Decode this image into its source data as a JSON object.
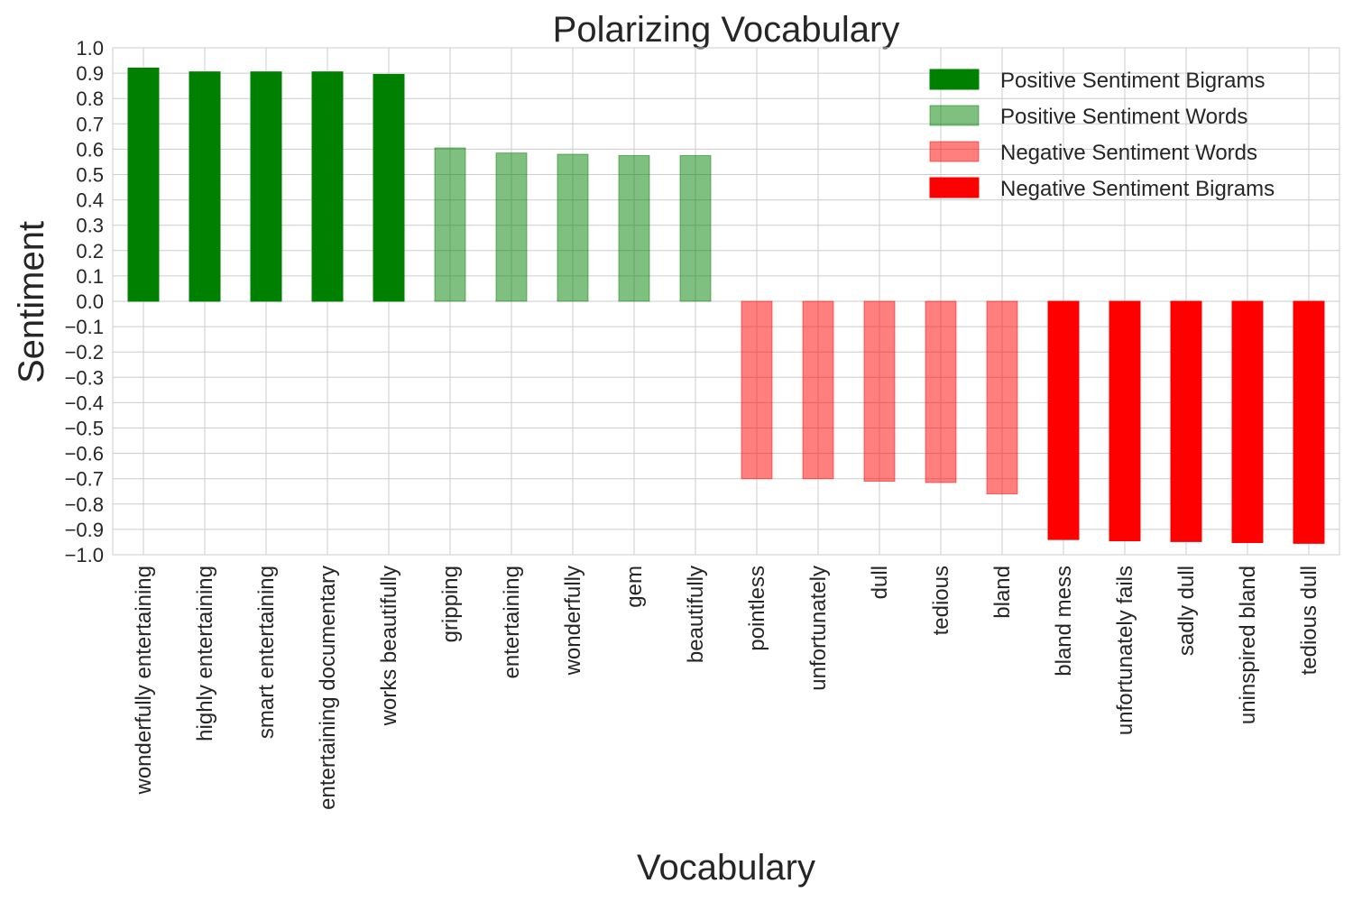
{
  "chart_data": {
    "type": "bar",
    "title": "Polarizing Vocabulary",
    "xlabel": "Vocabulary",
    "ylabel": "Sentiment",
    "ylim": [
      -1.0,
      1.0
    ],
    "ytick_step": 0.1,
    "grid": true,
    "legend_position": "top-right",
    "categories": [
      "wonderfully entertaining",
      "highly entertaining",
      "smart entertaining",
      "entertaining documentary",
      "works beautifully",
      "gripping",
      "entertaining",
      "wonderfully",
      "gem",
      "beautifully",
      "pointless",
      "unfortunately",
      "dull",
      "tedious",
      "bland",
      "bland mess",
      "unfortunately fails",
      "sadly dull",
      "uninspired bland",
      "tedious dull"
    ],
    "series": [
      {
        "name": "Positive Sentiment Bigrams",
        "color": "#008000",
        "opacity": 1.0,
        "values": [
          0.92,
          0.905,
          0.905,
          0.905,
          0.895,
          null,
          null,
          null,
          null,
          null,
          null,
          null,
          null,
          null,
          null,
          null,
          null,
          null,
          null,
          null
        ]
      },
      {
        "name": "Positive Sentiment Words",
        "color": "#008000",
        "opacity": 0.5,
        "values": [
          null,
          null,
          null,
          null,
          null,
          0.605,
          0.585,
          0.58,
          0.575,
          0.575,
          null,
          null,
          null,
          null,
          null,
          null,
          null,
          null,
          null,
          null
        ]
      },
      {
        "name": "Negative Sentiment Words",
        "color": "#ff0000",
        "opacity": 0.5,
        "values": [
          null,
          null,
          null,
          null,
          null,
          null,
          null,
          null,
          null,
          null,
          -0.7,
          -0.7,
          -0.71,
          -0.715,
          -0.76,
          null,
          null,
          null,
          null,
          null
        ]
      },
      {
        "name": "Negative Sentiment Bigrams",
        "color": "#ff0000",
        "opacity": 1.0,
        "values": [
          null,
          null,
          null,
          null,
          null,
          null,
          null,
          null,
          null,
          null,
          null,
          null,
          null,
          null,
          null,
          -0.94,
          -0.945,
          -0.948,
          -0.952,
          -0.955
        ]
      }
    ]
  }
}
